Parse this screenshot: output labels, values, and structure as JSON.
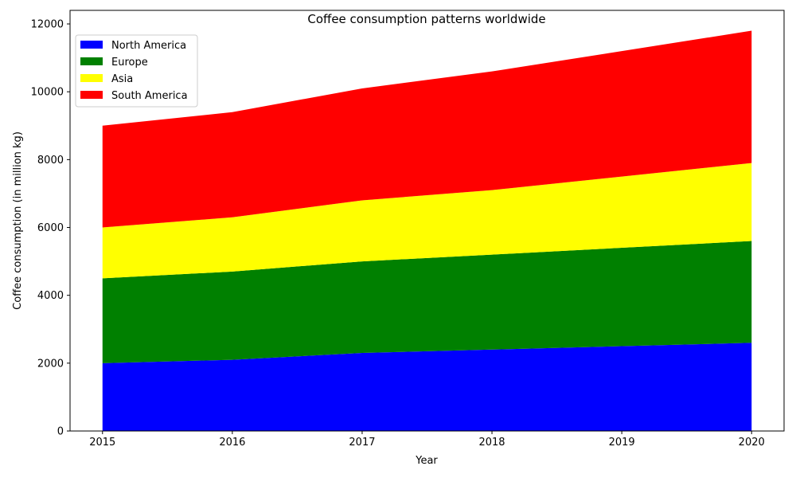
{
  "chart_data": {
    "type": "area",
    "stacked": true,
    "title": "Coffee consumption patterns worldwide",
    "xlabel": "Year",
    "ylabel": "Coffee consumption (in million kg)",
    "x": [
      2015,
      2016,
      2017,
      2018,
      2019,
      2020
    ],
    "xlim": [
      2014.75,
      2020.25
    ],
    "ylim": [
      0,
      12400
    ],
    "yticks": [
      0,
      2000,
      4000,
      6000,
      8000,
      10000,
      12000
    ],
    "grid": false,
    "legend_position": "top-left",
    "series": [
      {
        "name": "North America",
        "color": "#0000ff",
        "values": [
          2000,
          2100,
          2300,
          2400,
          2500,
          2600
        ]
      },
      {
        "name": "Europe",
        "color": "#008000",
        "values": [
          2500,
          2600,
          2700,
          2800,
          2900,
          3000
        ]
      },
      {
        "name": "Asia",
        "color": "#ffff00",
        "values": [
          1500,
          1600,
          1800,
          1900,
          2100,
          2300
        ]
      },
      {
        "name": "South America",
        "color": "#ff0000",
        "values": [
          3000,
          3100,
          3300,
          3500,
          3700,
          3900
        ]
      }
    ]
  }
}
